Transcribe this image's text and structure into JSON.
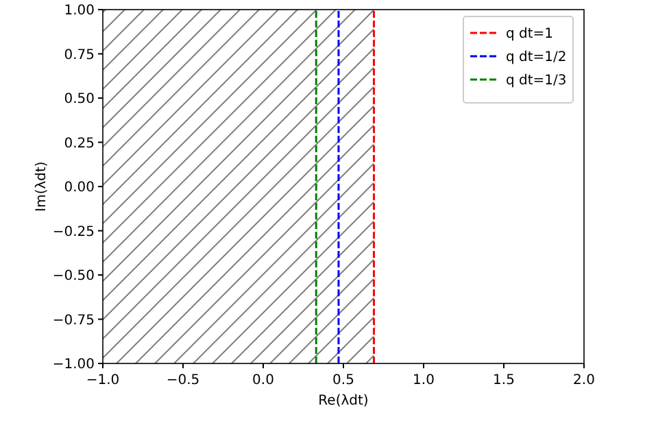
{
  "chart_data": {
    "type": "line",
    "xlabel": "Re(λdt)",
    "ylabel": "Im(λdt)",
    "xlim": [
      -1,
      2
    ],
    "xticks": [
      {
        "value": -1,
        "label": "−1.0"
      },
      {
        "value": -0.5,
        "label": "−0.5"
      },
      {
        "value": 0,
        "label": "0.0"
      },
      {
        "value": 0.5,
        "label": "0.5"
      },
      {
        "value": 1,
        "label": "1.0"
      },
      {
        "value": 1.5,
        "label": "1.5"
      },
      {
        "value": 2,
        "label": "2.0"
      }
    ],
    "ylim": [
      -1,
      1
    ],
    "yticks": [
      {
        "value": -1,
        "label": "−1.00"
      },
      {
        "value": -0.75,
        "label": "−0.75"
      },
      {
        "value": -0.5,
        "label": "−0.50"
      },
      {
        "value": -0.25,
        "label": "−0.25"
      },
      {
        "value": 0,
        "label": "0.00"
      },
      {
        "value": 0.25,
        "label": "0.25"
      },
      {
        "value": 0.5,
        "label": "0.50"
      },
      {
        "value": 0.75,
        "label": "0.75"
      },
      {
        "value": 1,
        "label": "1.00"
      }
    ],
    "bands": [
      {
        "axis": "x",
        "from": -1,
        "to": 0.69,
        "color": "#808080"
      }
    ],
    "series": [
      {
        "name": "q dt=1",
        "color": "#ff0000",
        "x": [
          0.69,
          0.69
        ],
        "values": [
          -1,
          1
        ]
      },
      {
        "name": "q dt=1/2",
        "color": "#0000ff",
        "x": [
          0.47,
          0.47
        ],
        "values": [
          -1,
          1
        ]
      },
      {
        "name": "q dt=1/3",
        "color": "#008000",
        "x": [
          0.33,
          0.33
        ],
        "values": [
          -1,
          1
        ]
      }
    ],
    "line_style": "dashed",
    "legend": "top right",
    "grid": false
  }
}
